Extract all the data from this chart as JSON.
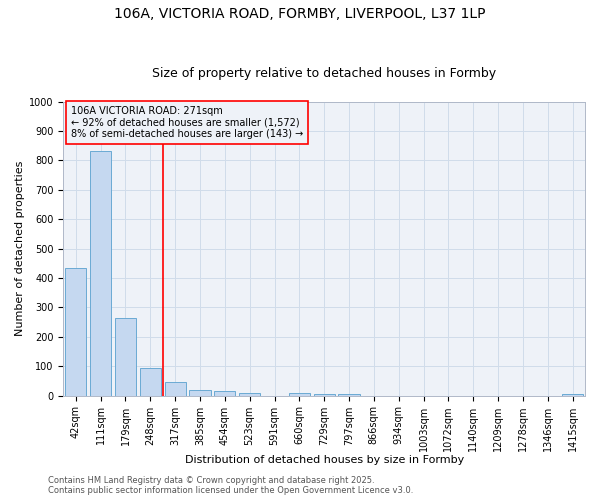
{
  "title1": "106A, VICTORIA ROAD, FORMBY, LIVERPOOL, L37 1LP",
  "title2": "Size of property relative to detached houses in Formby",
  "xlabel": "Distribution of detached houses by size in Formby",
  "ylabel": "Number of detached properties",
  "categories": [
    "42sqm",
    "111sqm",
    "179sqm",
    "248sqm",
    "317sqm",
    "385sqm",
    "454sqm",
    "523sqm",
    "591sqm",
    "660sqm",
    "729sqm",
    "797sqm",
    "866sqm",
    "934sqm",
    "1003sqm",
    "1072sqm",
    "1140sqm",
    "1209sqm",
    "1278sqm",
    "1346sqm",
    "1415sqm"
  ],
  "values": [
    435,
    830,
    265,
    95,
    45,
    20,
    15,
    10,
    0,
    10,
    5,
    5,
    0,
    0,
    0,
    0,
    0,
    0,
    0,
    0,
    5
  ],
  "bar_color": "#c5d8f0",
  "bar_edge_color": "#6aaad4",
  "vline_x": 3.5,
  "vline_color": "red",
  "annotation_text": "106A VICTORIA ROAD: 271sqm\n← 92% of detached houses are smaller (1,572)\n8% of semi-detached houses are larger (143) →",
  "annotation_box_color": "red",
  "grid_color": "#d0dcea",
  "background_color": "#ffffff",
  "plot_bg_color": "#eef2f8",
  "footer_text": "Contains HM Land Registry data © Crown copyright and database right 2025.\nContains public sector information licensed under the Open Government Licence v3.0.",
  "ylim": [
    0,
    1000
  ],
  "yticks": [
    0,
    100,
    200,
    300,
    400,
    500,
    600,
    700,
    800,
    900,
    1000
  ],
  "title1_fontsize": 10,
  "title2_fontsize": 9,
  "axis_fontsize": 8,
  "tick_fontsize": 7,
  "footer_fontsize": 6,
  "annot_fontsize": 7
}
